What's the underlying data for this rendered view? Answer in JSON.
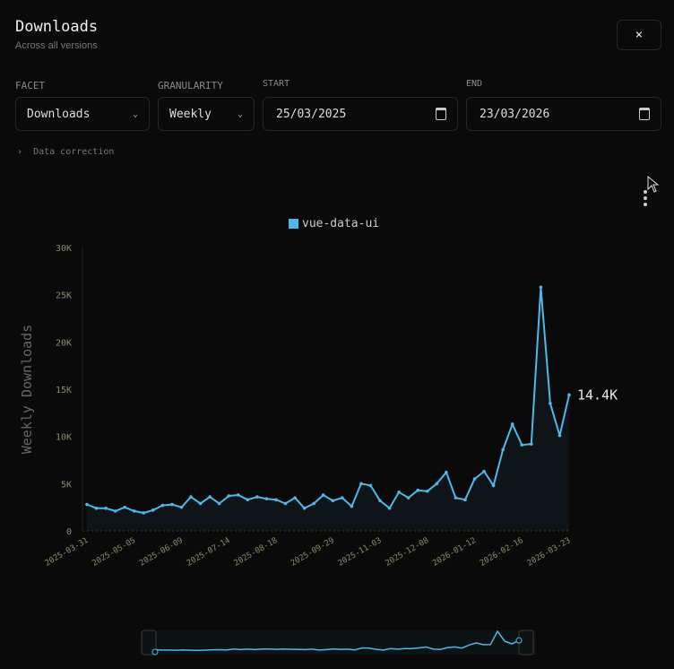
{
  "header": {
    "title": "Downloads",
    "subtitle": "Across all versions",
    "close_label": "×"
  },
  "filters": {
    "facet": {
      "label": "FACET",
      "value": "Downloads"
    },
    "granularity": {
      "label": "GRANULARITY",
      "value": "Weekly"
    },
    "start": {
      "label": "START",
      "value": "25/03/2025"
    },
    "end": {
      "label": "END",
      "value": "23/03/2026"
    }
  },
  "data_correction": {
    "label": "Data correction"
  },
  "colors": {
    "series": "#4fb8e8",
    "background": "#0a0a0a"
  },
  "chart_data": {
    "type": "line",
    "title": "",
    "ylabel": "Weekly Downloads",
    "xlabel": "",
    "ylim": [
      0,
      30000
    ],
    "yticks": [
      "0",
      "5K",
      "10K",
      "15K",
      "20K",
      "25K",
      "30K"
    ],
    "ytick_values": [
      0,
      5000,
      10000,
      15000,
      20000,
      25000,
      30000
    ],
    "xtick_labels": [
      "2025-03-31",
      "2025-05-05",
      "2025-06-09",
      "2025-07-14",
      "2025-08-18",
      "2025-09-29",
      "2025-11-03",
      "2025-12-08",
      "2026-01-12",
      "2026-02-16",
      "2026-03-23"
    ],
    "legend_position": "top",
    "last_value_label": "14.4K",
    "series": [
      {
        "name": "vue-data-ui",
        "color": "#4fb8e8",
        "x": [
          "2025-03-31",
          "2025-04-07",
          "2025-04-14",
          "2025-04-21",
          "2025-04-28",
          "2025-05-05",
          "2025-05-12",
          "2025-05-19",
          "2025-05-26",
          "2025-06-02",
          "2025-06-09",
          "2025-06-16",
          "2025-06-23",
          "2025-06-30",
          "2025-07-07",
          "2025-07-14",
          "2025-07-21",
          "2025-07-28",
          "2025-08-04",
          "2025-08-11",
          "2025-08-18",
          "2025-08-25",
          "2025-09-01",
          "2025-09-08",
          "2025-09-15",
          "2025-09-22",
          "2025-09-29",
          "2025-10-06",
          "2025-10-13",
          "2025-10-20",
          "2025-10-27",
          "2025-11-03",
          "2025-11-10",
          "2025-11-17",
          "2025-11-24",
          "2025-12-01",
          "2025-12-08",
          "2025-12-15",
          "2025-12-22",
          "2025-12-29",
          "2026-01-05",
          "2026-01-12",
          "2026-01-19",
          "2026-01-26",
          "2026-02-02",
          "2026-02-09",
          "2026-02-16",
          "2026-02-23",
          "2026-03-02",
          "2026-03-09",
          "2026-03-16",
          "2026-03-23"
        ],
        "values": [
          2800,
          2400,
          2400,
          2100,
          2500,
          2100,
          1900,
          2200,
          2700,
          2800,
          2500,
          3600,
          2900,
          3600,
          2900,
          3700,
          3800,
          3300,
          3600,
          3400,
          3300,
          2900,
          3500,
          2400,
          2900,
          3800,
          3200,
          3500,
          2600,
          5000,
          4800,
          3200,
          2400,
          4100,
          3500,
          4300,
          4200,
          5000,
          6200,
          3500,
          3300,
          5500,
          6300,
          4800,
          8600,
          11300,
          9100,
          9200,
          25800,
          13500,
          10100,
          14400
        ]
      }
    ]
  }
}
